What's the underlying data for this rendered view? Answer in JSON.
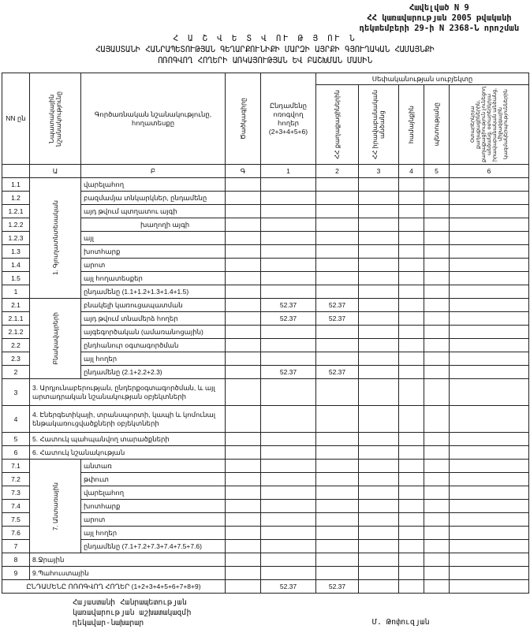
{
  "annex": [
    "Հավելված N 9",
    "ՀՀ կառավարության 2005 թվականի",
    "դեկտեմբերի 29-ի N 2368-Ն որոշման"
  ],
  "title": [
    "Հ Ա Շ Վ Ե Տ Վ ՈՒ Թ Յ ՈՒ Ն",
    "ՀԱՅԱՍՏԱՆԻ ՀԱՆՐԱՊԵՏՈՒԹՅԱՆ ԳԵՂԱՐՔՈՒՆԻՔԻ ՄԱՐԶԻ ԱՅՐՔԻ ԳՅՈՒՂԱԿԱՆ ՀԱՄԱՅՆՔԻ",
    "ՈՌՈԳՎՈՂ ՀՈՂԵՐԻ ԱՌԿԱՅՈՒԹՅԱՆ ԵՎ ԲԱՇԽՄԱՆ ՄԱՍԻՆ"
  ],
  "header": {
    "nn": "NN ըն",
    "purpose": "Նպատակային նշանակությունը",
    "function": "Գործառնական նշանակությունը, հողատեսքը",
    "code": "Ծածկագիրը",
    "total": "Ընդամենը ոռոգվող հողեր (2+3+4+5+6)",
    "ownership": "Սեփականության սուբյեկտը",
    "citizens": "ՀՀ քաղաքացիներին",
    "legal": "ՀՀ իրավաբանական անձանց",
    "community": "համայնքին",
    "state": "պետությանը",
    "foreign": "Օտարերկրյա քաղաքացիներին, քաղաքացիություն չունեցող անձանց, օտարերկրյա իրավաբանական անձանց, միջազգային կազմակերպություններին",
    "letters": [
      "Ա",
      "Բ",
      "Գ",
      "1",
      "2",
      "3",
      "4",
      "5",
      "6"
    ]
  },
  "groups": {
    "agri": "1. Գյուղատնտեսական",
    "settle": "Բնակավայրերի",
    "forest": "7. Անտառային"
  },
  "rows": [
    {
      "nn": "1.1",
      "name": "վարելահող",
      "total": "",
      "c2": ""
    },
    {
      "nn": "1.2",
      "name": "բազմամյա տնկարկներ, ընդամենը",
      "total": "",
      "c2": ""
    },
    {
      "nn": "1.2.1",
      "name": "այդ թվում        պտղատու այգի",
      "total": "",
      "c2": ""
    },
    {
      "nn": "1.2.2",
      "name": "խաղողի այգի",
      "total": "",
      "c2": ""
    },
    {
      "nn": "1.2.3",
      "name": "այլ",
      "total": "",
      "c2": ""
    },
    {
      "nn": "1.3",
      "name": "խոտհարք",
      "total": "",
      "c2": ""
    },
    {
      "nn": "1.4",
      "name": "արոտ",
      "total": "",
      "c2": ""
    },
    {
      "nn": "1.5",
      "name": "այլ հողատեսքեր",
      "total": "",
      "c2": ""
    },
    {
      "nn": "1",
      "name": "ընդամենը (1.1+1.2+1.3+1.4+1.5)",
      "total": "",
      "c2": ""
    },
    {
      "nn": "2.1",
      "name": "բնակելի կառուցապատման",
      "total": "52.37",
      "c2": "52.37"
    },
    {
      "nn": "2.1.1",
      "name": "այդ թվում տնամերձ հողեր",
      "total": "52.37",
      "c2": "52.37"
    },
    {
      "nn": "2.1.2",
      "name": "այգեգործական (ամառանոցային)",
      "total": "",
      "c2": ""
    },
    {
      "nn": "2.2",
      "name": "ընդհանուր օգտագործման",
      "total": "",
      "c2": ""
    },
    {
      "nn": "2.3",
      "name": "այլ հողեր",
      "total": "",
      "c2": ""
    },
    {
      "nn": "2",
      "name": "ընդամենը (2.1+2.2+2.3)",
      "total": "52.37",
      "c2": "52.37"
    },
    {
      "nn": "3",
      "name": "3. Արդյունաբերության, ընդերքօգտագործման, և այլ արտադրական նշանակության օբյեկտների",
      "total": "",
      "c2": ""
    },
    {
      "nn": "4",
      "name": "4. Էներգետիկայի, տրանսպորտի, կապի և կոմունալ ենթակառուցվածքների օբյեկտների",
      "total": "",
      "c2": ""
    },
    {
      "nn": "5",
      "name": "5. Հատուկ պահպանվող տարածքների",
      "total": "",
      "c2": ""
    },
    {
      "nn": "6",
      "name": "6. Հատուկ նշանակության",
      "total": "",
      "c2": ""
    },
    {
      "nn": "7.1",
      "name": "անտառ",
      "total": "",
      "c2": ""
    },
    {
      "nn": "7.2",
      "name": "թփուտ",
      "total": "",
      "c2": ""
    },
    {
      "nn": "7.3",
      "name": "վարելահող",
      "total": "",
      "c2": ""
    },
    {
      "nn": "7.4",
      "name": "խոտհարք",
      "total": "",
      "c2": ""
    },
    {
      "nn": "7.5",
      "name": "արոտ",
      "total": "",
      "c2": ""
    },
    {
      "nn": "7.6",
      "name": "այլ հողեր",
      "total": "",
      "c2": ""
    },
    {
      "nn": "7",
      "name": "ընդամենը (7.1+7.2+7.3+7.4+7.5+7.6)",
      "total": "",
      "c2": ""
    },
    {
      "nn": "8",
      "name": "8.Ջրային",
      "total": "",
      "c2": ""
    },
    {
      "nn": "9",
      "name": "9.Պահուստային",
      "total": "",
      "c2": ""
    }
  ],
  "grand_total": {
    "name": "ԸՆԴԱՄԵՆԸ ՈՌՈԳՎՈՂ ՀՈՂԵՐ (1+2+3+4+5+6+7+8+9)",
    "total": "52.37",
    "c2": "52.37"
  },
  "footer": {
    "position": [
      "Հայաստանի Հանրապետության",
      "կառավարության աշխատակազմի",
      "ղեկավար-նախարար"
    ],
    "signatory": "Մ. Թոփուզյան"
  }
}
